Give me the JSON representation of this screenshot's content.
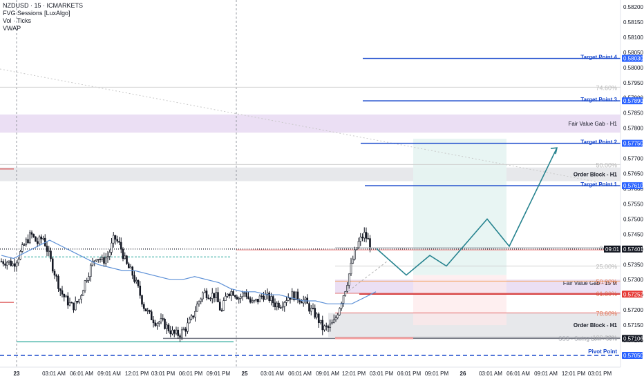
{
  "legend": {
    "symbol": "NZDUSD · 15 · ICMARKETS",
    "indicator_1": "FVG Sessions [LuxAlgo]",
    "indicator_2": "Vol · Ticks",
    "indicator_3": "VWAP"
  },
  "chart_data": {
    "type": "candlestick",
    "symbol": "NZDUSD",
    "timeframe": "15",
    "broker": "ICMARKETS",
    "y_range": [
      0.57045,
      0.58215
    ],
    "y_ticks": [
      "0.58200",
      "0.58150",
      "0.58100",
      "0.58050",
      "0.58000",
      "0.57950",
      "0.57900",
      "0.57850",
      "0.57800",
      "0.57750",
      "0.57700",
      "0.57650",
      "0.57600",
      "0.57550",
      "0.57500",
      "0.57450",
      "0.57400",
      "0.57350",
      "0.57300",
      "0.57250",
      "0.57200",
      "0.57150",
      "0.57100",
      "0.57050"
    ],
    "x_labels": [
      "23",
      "03:01 AM",
      "06:01 AM",
      "09:01 AM",
      "12:01 PM",
      "03:01 PM",
      "06:01 PM",
      "09:01 PM",
      "25",
      "03:01 AM",
      "06:01 AM",
      "09:01 AM",
      "12:01 PM",
      "03:01 PM",
      "06:01 PM",
      "09:01 PM",
      "26",
      "03:01 AM",
      "06:01 AM",
      "09:01 AM",
      "12:01 PM",
      "03:01 PM"
    ],
    "last_price": "0.57401",
    "countdown": "09:01",
    "close_path": [
      0.5736,
      0.5736,
      0.5735,
      0.5738,
      0.5742,
      0.5745,
      0.5742,
      0.5744,
      0.5738,
      0.5732,
      0.5726,
      0.5723,
      0.5721,
      0.5723,
      0.5729,
      0.5734,
      0.5738,
      0.5736,
      0.5738,
      0.5744,
      0.5741,
      0.5735,
      0.5732,
      0.5727,
      0.5721,
      0.5718,
      0.5716,
      0.5716,
      0.5714,
      0.5712,
      0.5712,
      0.5714,
      0.5717,
      0.5722,
      0.5726,
      0.5725,
      0.5725,
      0.5719,
      0.5726,
      0.5726,
      0.5724,
      0.5726,
      0.5722,
      0.5723,
      0.5725,
      0.5724,
      0.5722,
      0.5722,
      0.5724,
      0.5725,
      0.5724,
      0.5723,
      0.572,
      0.5718,
      0.5714,
      0.5714,
      0.5716,
      0.5722,
      0.5728,
      0.5736,
      0.5742,
      0.5745,
      0.5742
    ],
    "vwap": [
      0.5738,
      0.5737,
      0.5739,
      0.5741,
      0.5743,
      0.5741,
      0.5739,
      0.5737,
      0.5735,
      0.5734,
      0.5733,
      0.5733,
      0.5732,
      0.5731,
      0.573,
      0.573,
      0.5731,
      0.573,
      0.5729,
      0.5727,
      0.5726,
      0.5726,
      0.5725,
      0.5725,
      0.5724,
      0.5723,
      0.5723,
      0.5722,
      0.5722,
      0.5722,
      0.5724,
      0.5726
    ],
    "levels": [
      {
        "label": "Target Point 4",
        "value": 0.5803,
        "tag": "0.58030",
        "color": "#1848cc"
      },
      {
        "label": "Target Point 3",
        "value": 0.5789,
        "tag": "0.57890",
        "color": "#1848cc"
      },
      {
        "label": "Target Point 2",
        "value": 0.5775,
        "tag": "0.57750",
        "color": "#1848cc"
      },
      {
        "label": "Target Point 1",
        "value": 0.5761,
        "tag": "0.57610",
        "color": "#1848cc"
      },
      {
        "label": "Pivot Point",
        "value": 0.5705,
        "tag": "0.57050",
        "color": "#1848cc"
      },
      {
        "label": "SSS - Swing Low - 50%",
        "value": 0.57106,
        "tag": "0.57106",
        "color": "#787b86"
      }
    ],
    "zones": [
      {
        "label": "Fair Value Gab - H1",
        "low": 0.57785,
        "high": 0.57845,
        "color": "#e7d9f2"
      },
      {
        "label": "Order Block - H1",
        "low": 0.57625,
        "high": 0.5767,
        "color": "#e3e4e8"
      },
      {
        "label": "Fair Value Gab - 15 M",
        "low": 0.57255,
        "high": 0.573,
        "color": "#e7d9f2"
      },
      {
        "label": "Order Block - H1",
        "low": 0.5711,
        "high": 0.5719,
        "color": "#e3e4e8"
      }
    ],
    "fib_levels": [
      {
        "label": "0.00%",
        "value": 0.57405
      },
      {
        "label": "25.00%",
        "value": 0.57345
      },
      {
        "label": "50.00%",
        "value": 0.57295
      },
      {
        "label": "61.80%",
        "value": 0.57255
      },
      {
        "label": "78.60%",
        "value": 0.5719
      },
      {
        "label": "100.00%",
        "value": 0.5711
      },
      {
        "label": "74.60%",
        "value": 0.57935
      },
      {
        "label": "50.00%",
        "value": 0.5768
      }
    ],
    "sl_tag": "0.57252",
    "sl_label": "Stop Loss"
  }
}
